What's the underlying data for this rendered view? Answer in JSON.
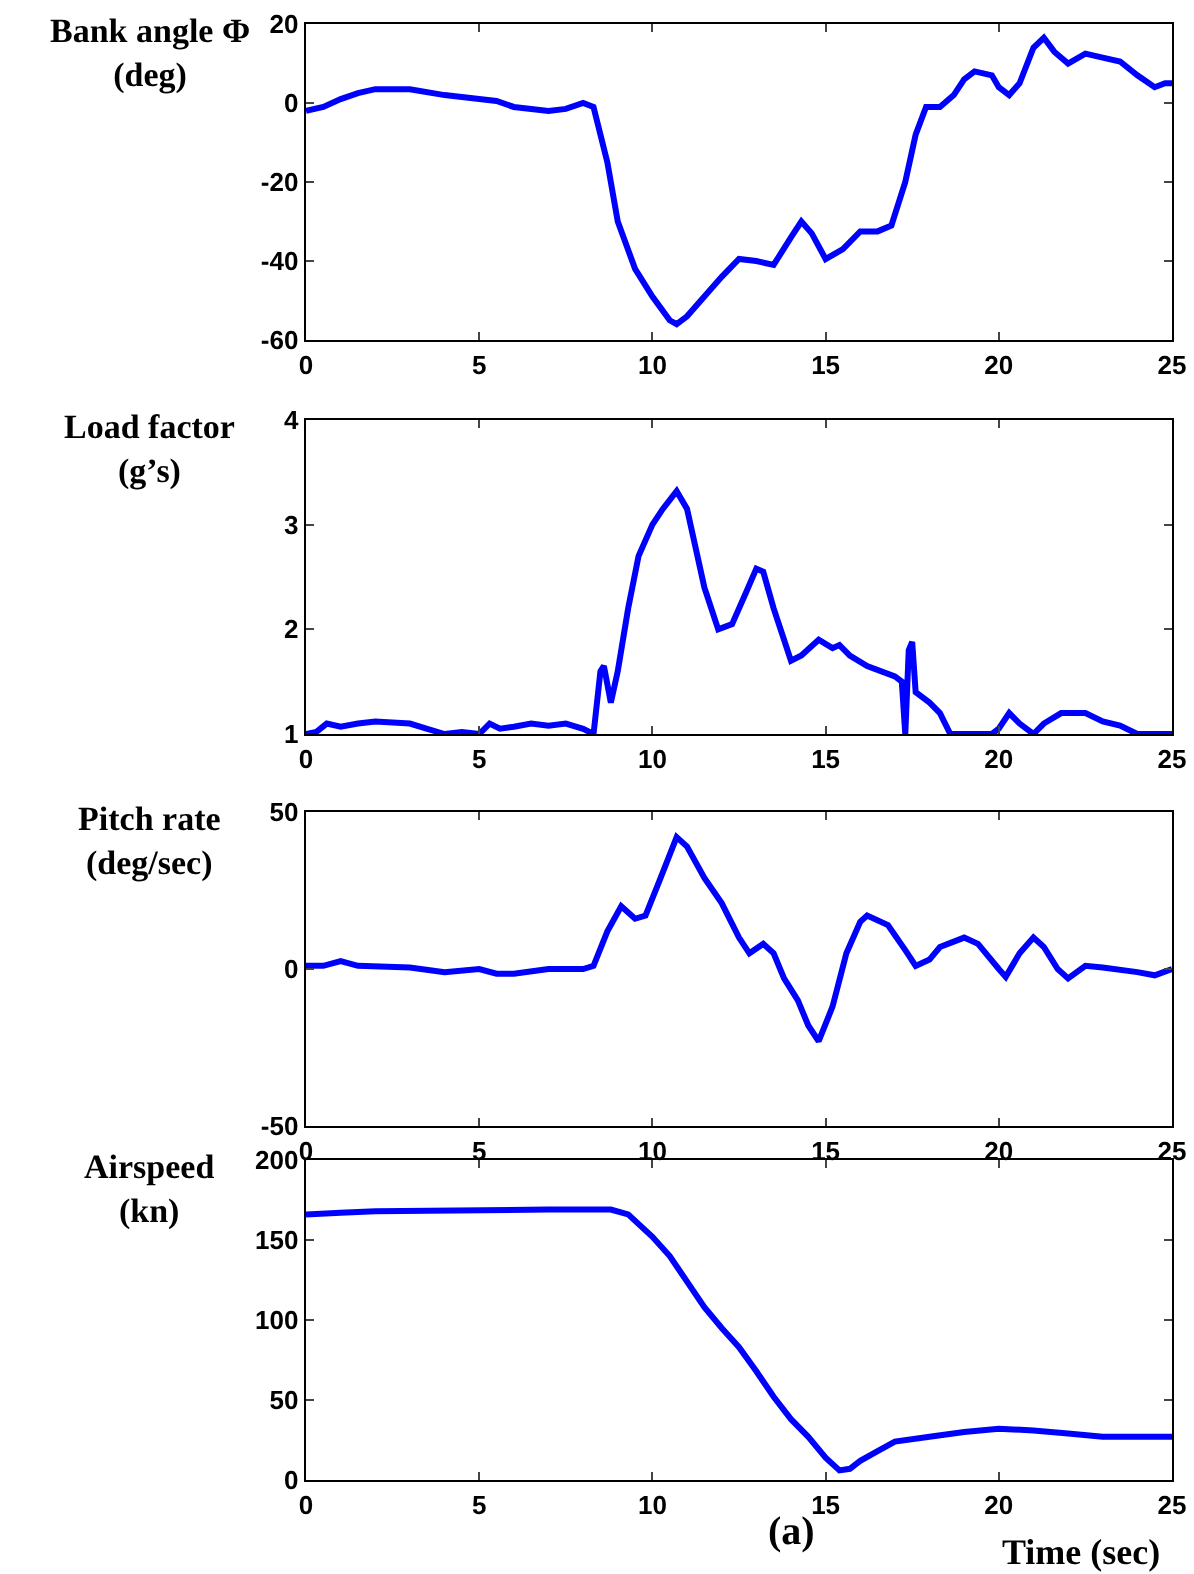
{
  "chart_data": [
    {
      "type": "line",
      "ylabel": "Bank angle Φ\n(deg)",
      "color": "#0000ff",
      "xlim": [
        0,
        25
      ],
      "xticks": [
        0,
        5,
        10,
        15,
        20,
        25
      ],
      "ylim": [
        -60,
        20
      ],
      "yticks": [
        -60,
        -40,
        -20,
        0,
        20
      ],
      "x": [
        0,
        0.5,
        1,
        1.5,
        2,
        3,
        4,
        5,
        5.5,
        6,
        7,
        7.5,
        8,
        8.3,
        8.7,
        9,
        9.5,
        10,
        10.5,
        10.7,
        11,
        11.5,
        12,
        12.5,
        13,
        13.5,
        14,
        14.3,
        14.6,
        15,
        15.5,
        16,
        16.5,
        16.9,
        17.3,
        17.6,
        17.9,
        18.3,
        18.7,
        19,
        19.3,
        19.8,
        20,
        20.3,
        20.6,
        21,
        21.3,
        21.6,
        22,
        22.5,
        23,
        23.5,
        24,
        24.5,
        24.8,
        25
      ],
      "values": [
        -2,
        -1,
        1,
        2.5,
        3.5,
        3.5,
        2,
        1,
        0.5,
        -1,
        -2,
        -1.5,
        0,
        -1,
        -15,
        -30,
        -42,
        -49,
        -55,
        -56,
        -54,
        -49,
        -44,
        -39.5,
        -40,
        -41,
        -34,
        -30,
        -33,
        -39.5,
        -37,
        -32.5,
        -32.5,
        -31,
        -20,
        -8,
        -1,
        -1,
        2,
        6,
        8,
        7,
        4,
        2,
        5,
        14,
        16.5,
        13,
        10,
        12.5,
        11.5,
        10.5,
        7,
        4,
        5,
        5
      ]
    },
    {
      "type": "line",
      "ylabel": "Load factor\n(g’s)",
      "color": "#0000ff",
      "xlim": [
        0,
        25
      ],
      "xticks": [
        0,
        5,
        10,
        15,
        20,
        25
      ],
      "ylim": [
        1,
        4
      ],
      "yticks": [
        1,
        2,
        3,
        4
      ],
      "x": [
        0,
        0.3,
        0.6,
        1,
        1.5,
        2,
        3,
        3.5,
        4,
        4.5,
        5,
        5.3,
        5.6,
        6,
        6.5,
        7,
        7.5,
        8,
        8.3,
        8.5,
        8.6,
        8.8,
        9,
        9.3,
        9.6,
        10,
        10.3,
        10.7,
        11,
        11.5,
        11.9,
        12.3,
        12.7,
        13,
        13.2,
        13.5,
        13.8,
        14,
        14.3,
        14.8,
        15.2,
        15.4,
        15.7,
        16.2,
        17,
        17.2,
        17.3,
        17.4,
        17.5,
        17.6,
        18,
        18.3,
        18.6,
        19.8,
        20,
        20.3,
        20.6,
        21,
        21.3,
        21.8,
        22.5,
        23,
        23.5,
        24,
        25
      ],
      "values": [
        1,
        1.02,
        1.1,
        1.07,
        1.1,
        1.12,
        1.1,
        1.05,
        1,
        1.02,
        1,
        1.1,
        1.05,
        1.07,
        1.1,
        1.08,
        1.1,
        1.05,
        1,
        1.6,
        1.65,
        1.3,
        1.6,
        2.2,
        2.7,
        3,
        3.15,
        3.32,
        3.15,
        2.4,
        2,
        2.05,
        2.35,
        2.58,
        2.55,
        2.2,
        1.9,
        1.7,
        1.75,
        1.9,
        1.82,
        1.85,
        1.75,
        1.65,
        1.55,
        1.5,
        1,
        1.8,
        1.88,
        1.4,
        1.3,
        1.2,
        1,
        1,
        1.05,
        1.2,
        1.1,
        1,
        1.1,
        1.2,
        1.2,
        1.12,
        1.08,
        1,
        1
      ]
    },
    {
      "type": "line",
      "ylabel": "Pitch rate\n(deg/sec)",
      "color": "#0000ff",
      "xlim": [
        0,
        25
      ],
      "xticks": [
        0,
        5,
        10,
        15,
        20,
        25
      ],
      "ylim": [
        -50,
        50
      ],
      "yticks": [
        -50,
        0,
        50
      ],
      "x": [
        0,
        0.5,
        1,
        1.5,
        3,
        4,
        5,
        5.5,
        6,
        7,
        8,
        8.3,
        8.7,
        9.1,
        9.5,
        9.8,
        10.2,
        10.7,
        11,
        11.5,
        12,
        12.5,
        12.8,
        13.2,
        13.5,
        13.8,
        14.2,
        14.5,
        14.8,
        15.2,
        15.6,
        16,
        16.2,
        16.8,
        17.3,
        17.6,
        18,
        18.3,
        19,
        19.4,
        20,
        20.2,
        20.6,
        21,
        21.3,
        21.7,
        22,
        22.5,
        23,
        24,
        24.5,
        25
      ],
      "values": [
        1,
        1,
        2.5,
        1,
        0.5,
        -1,
        0,
        -1.5,
        -1.5,
        0,
        0,
        1,
        12,
        20,
        16,
        17,
        28,
        42,
        39,
        29,
        21,
        10,
        5,
        8,
        5,
        -3,
        -10,
        -18,
        -23,
        -12,
        5,
        15,
        17,
        14,
        6,
        1,
        3,
        7,
        10,
        8,
        0,
        -2.5,
        5,
        10,
        7,
        0,
        -3,
        1,
        0.5,
        -1,
        -2,
        0
      ]
    },
    {
      "type": "line",
      "ylabel": "Airspeed\n(kn)",
      "xlabel": "Time (sec)",
      "annotations": [
        "(a)"
      ],
      "color": "#0000ff",
      "xlim": [
        0,
        25
      ],
      "xticks": [
        0,
        5,
        10,
        15,
        20,
        25
      ],
      "ylim": [
        0,
        200
      ],
      "yticks": [
        0,
        50,
        100,
        150,
        200
      ],
      "x": [
        0,
        1,
        2,
        7,
        8.8,
        9.3,
        10,
        10.5,
        11,
        11.5,
        12,
        12.5,
        13,
        13.5,
        14,
        14.5,
        15,
        15.4,
        15.7,
        16,
        16.5,
        17,
        18,
        19,
        20,
        21,
        22,
        23,
        25
      ],
      "values": [
        166,
        167,
        168,
        169,
        169,
        166,
        152,
        140,
        124,
        108,
        95,
        83,
        68,
        52,
        38,
        27,
        14,
        6,
        7,
        12,
        18,
        24,
        27,
        30,
        32,
        31,
        29,
        27,
        27
      ]
    }
  ]
}
